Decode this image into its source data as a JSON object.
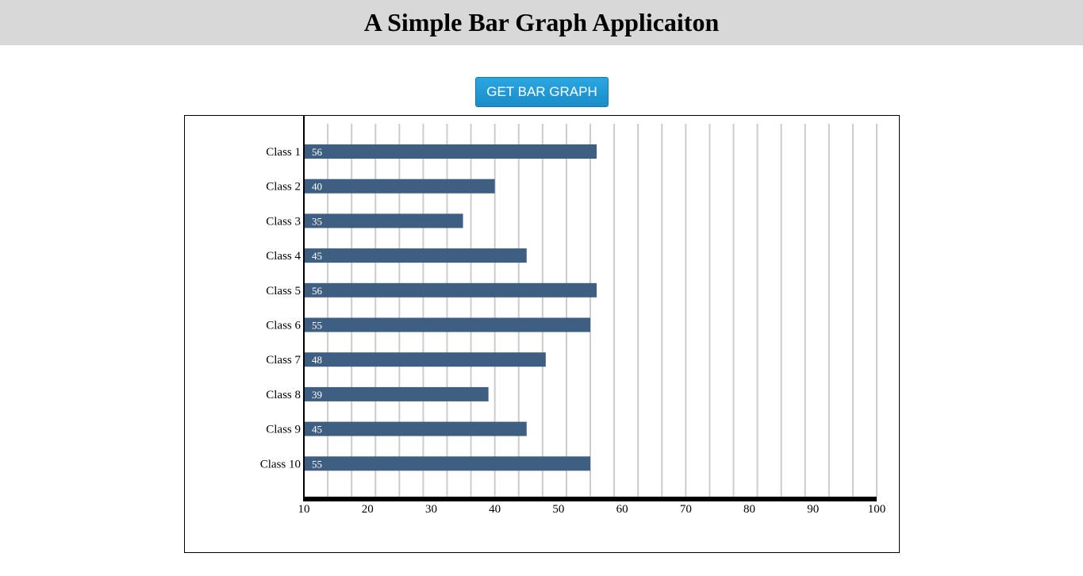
{
  "header": {
    "title": "A Simple Bar Graph Applicaiton"
  },
  "toolbar": {
    "get_graph_label": "GET BAR GRAPH"
  },
  "chart_data": {
    "type": "bar",
    "orientation": "horizontal",
    "categories": [
      "Class 1",
      "Class 2",
      "Class 3",
      "Class 4",
      "Class 5",
      "Class 6",
      "Class 7",
      "Class 8",
      "Class 9",
      "Class 10"
    ],
    "values": [
      56,
      40,
      35,
      45,
      56,
      55,
      48,
      39,
      45,
      55
    ],
    "xlim": [
      10,
      100
    ],
    "xticks": [
      10,
      20,
      30,
      40,
      50,
      60,
      70,
      80,
      90,
      100
    ],
    "minor_grid_step": 3.75,
    "grid": true,
    "bar_color": "#3f5f82",
    "grid_color": "#cccccc",
    "title": "",
    "xlabel": "",
    "ylabel": ""
  }
}
